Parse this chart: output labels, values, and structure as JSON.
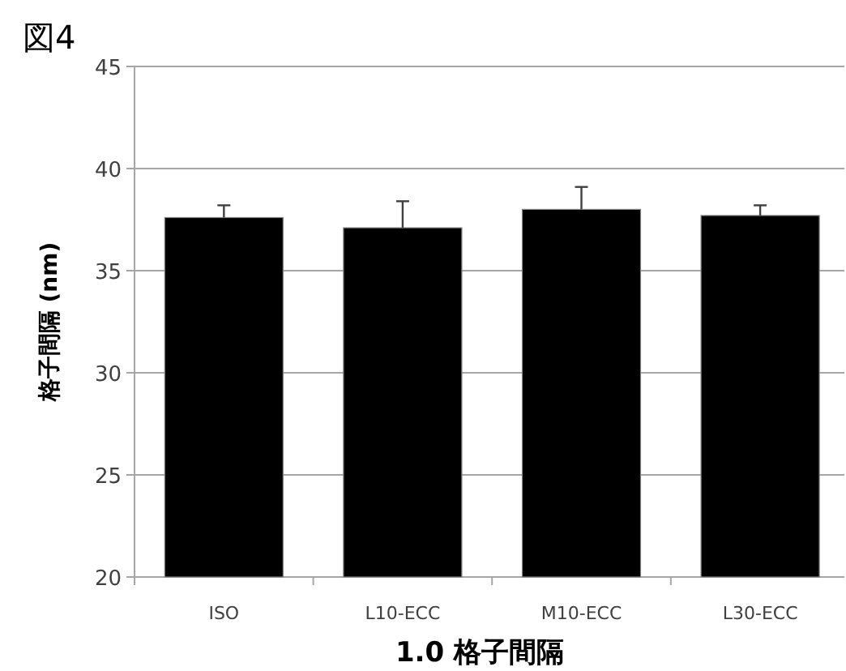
{
  "chart_data": {
    "type": "bar",
    "title": "図4",
    "xlabel": "1.0 格子間隔",
    "ylabel": "格子間隔 (nm)",
    "categories": [
      "ISO",
      "L10-ECC",
      "M10-ECC",
      "L30-ECC"
    ],
    "values": [
      37.6,
      37.1,
      38.0,
      37.7
    ],
    "errors": [
      [
        37.6,
        38.2
      ],
      [
        37.1,
        38.4
      ],
      [
        38.0,
        39.1
      ],
      [
        37.7,
        38.2
      ]
    ],
    "color": "#000000",
    "ylim": [
      20,
      45
    ],
    "yticks": [
      20,
      25,
      30,
      35,
      40,
      45
    ],
    "grid": "y"
  }
}
